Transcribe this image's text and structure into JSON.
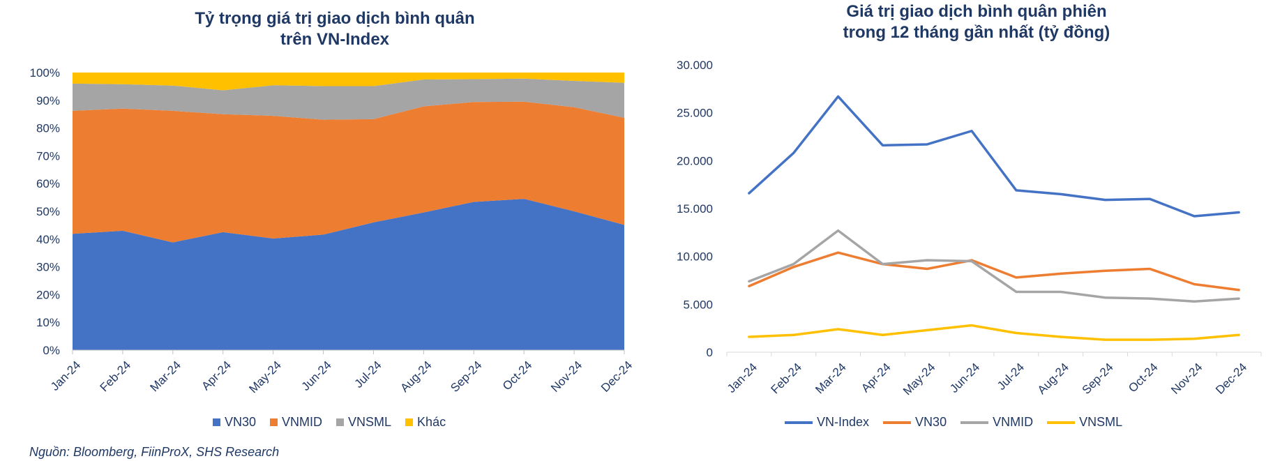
{
  "chart_data": [
    {
      "type": "area",
      "stacked": true,
      "title": "Tỷ trọng giá trị giao dịch bình quân\ntrên VN-Index",
      "categories": [
        "Jan-24",
        "Feb-24",
        "Mar-24",
        "Apr-24",
        "May-24",
        "Jun-24",
        "Jul-24",
        "Aug-24",
        "Sep-24",
        "Oct-24",
        "Nov-24",
        "Dec-24"
      ],
      "y_ticks": [
        "0%",
        "10%",
        "20%",
        "30%",
        "40%",
        "50%",
        "60%",
        "70%",
        "80%",
        "90%",
        "100%"
      ],
      "ylim": [
        0,
        100
      ],
      "legend_position": "bottom",
      "series": [
        {
          "name": "VN30",
          "color": "#4472c4",
          "values": [
            41.9,
            43.0,
            38.8,
            42.5,
            40.2,
            41.6,
            46.0,
            49.6,
            53.4,
            54.5,
            50.0,
            45.1
          ]
        },
        {
          "name": "VNMID",
          "color": "#ed7d31",
          "values": [
            44.3,
            44.0,
            47.4,
            42.5,
            44.2,
            41.4,
            37.2,
            38.2,
            36.0,
            35.0,
            37.5,
            38.6
          ]
        },
        {
          "name": "VNSML",
          "color": "#a5a5a5",
          "values": [
            9.8,
            8.8,
            9.1,
            8.6,
            11.0,
            12.1,
            11.9,
            9.7,
            8.2,
            8.3,
            9.5,
            12.6
          ]
        },
        {
          "name": "Khác",
          "color": "#ffc000",
          "values": [
            4.0,
            4.2,
            4.7,
            6.4,
            4.6,
            4.9,
            4.9,
            2.5,
            2.4,
            2.2,
            3.0,
            3.7
          ]
        }
      ]
    },
    {
      "type": "line",
      "title": "Giá trị giao dịch bình quân phiên\ntrong 12 tháng gần nhất (tỷ đồng)",
      "categories": [
        "Jan-24",
        "Feb-24",
        "Mar-24",
        "Apr-24",
        "May-24",
        "Jun-24",
        "Jul-24",
        "Aug-24",
        "Sep-24",
        "Oct-24",
        "Nov-24",
        "Dec-24"
      ],
      "y_ticks": [
        "0",
        "5.000",
        "10.000",
        "15.000",
        "20.000",
        "25.000",
        "30.000"
      ],
      "ylim": [
        0,
        30000
      ],
      "legend_position": "bottom",
      "series": [
        {
          "name": "VN-Index",
          "color": "#4472c4",
          "values": [
            16600,
            20800,
            26700,
            21600,
            21700,
            23100,
            16900,
            16500,
            15900,
            16000,
            14200,
            14600
          ]
        },
        {
          "name": "VN30",
          "color": "#ed7d31",
          "values": [
            6900,
            8900,
            10400,
            9200,
            8700,
            9600,
            7800,
            8200,
            8500,
            8700,
            7100,
            6500
          ]
        },
        {
          "name": "VNMID",
          "color": "#a5a5a5",
          "values": [
            7400,
            9200,
            12700,
            9200,
            9600,
            9500,
            6300,
            6300,
            5700,
            5600,
            5300,
            5600
          ]
        },
        {
          "name": "VNSML",
          "color": "#ffc000",
          "values": [
            1600,
            1800,
            2400,
            1800,
            2300,
            2800,
            2000,
            1600,
            1300,
            1300,
            1400,
            1800
          ]
        }
      ]
    }
  ],
  "source": "Nguồn: Bloomberg, FiinProX, SHS Research"
}
